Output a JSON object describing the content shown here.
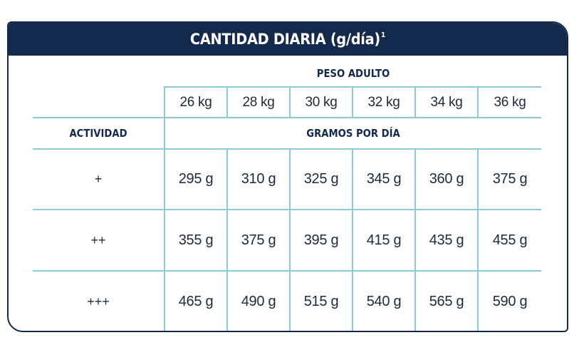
{
  "table": {
    "title": "CANTIDAD DIARIA (g/día)",
    "title_superscript": "1",
    "weight_header": "PESO ADULTO",
    "activity_header": "ACTIVIDAD",
    "grams_header": "GRAMOS POR DÍA",
    "weights": [
      "26 kg",
      "28 kg",
      "30 kg",
      "32 kg",
      "34 kg",
      "36 kg"
    ],
    "rows": [
      {
        "activity": "+",
        "values": [
          "295 g",
          "310 g",
          "325 g",
          "345 g",
          "360 g",
          "375 g"
        ]
      },
      {
        "activity": "++",
        "values": [
          "355 g",
          "375 g",
          "395 g",
          "415 g",
          "435 g",
          "455 g"
        ]
      },
      {
        "activity": "+++",
        "values": [
          "465 g",
          "490 g",
          "515 g",
          "540 g",
          "565 g",
          "590 g"
        ]
      }
    ]
  },
  "colors": {
    "header_background": "#142a4c",
    "grid_lines": "#8fc9d2",
    "text": "#1c2a3a"
  }
}
